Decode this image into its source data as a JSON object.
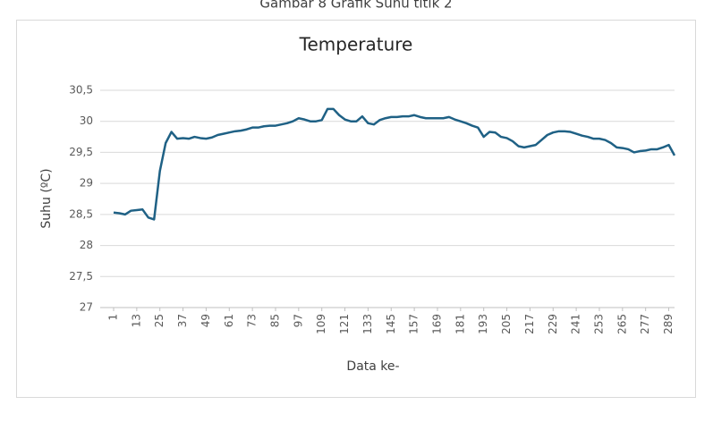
{
  "chart_data": {
    "type": "line",
    "caption": "Gambar 8 Grafik Suhu titik 2",
    "title": "Temperature",
    "y_label": "Suhu (ºC)",
    "x_label": "Data ke-",
    "x": [
      1,
      4,
      7,
      10,
      13,
      16,
      19,
      22,
      25,
      28,
      31,
      34,
      37,
      40,
      43,
      46,
      49,
      52,
      55,
      58,
      61,
      64,
      67,
      70,
      73,
      76,
      79,
      82,
      85,
      88,
      91,
      94,
      97,
      100,
      103,
      106,
      109,
      112,
      115,
      118,
      121,
      124,
      127,
      130,
      133,
      136,
      139,
      142,
      145,
      148,
      151,
      154,
      157,
      160,
      163,
      166,
      169,
      172,
      175,
      178,
      181,
      184,
      187,
      190,
      193,
      196,
      199,
      202,
      205,
      208,
      211,
      214,
      217,
      220,
      223,
      226,
      229,
      232,
      235,
      238,
      241,
      244,
      247,
      250,
      253,
      256,
      259,
      262,
      265,
      268,
      271,
      274,
      277,
      280,
      283,
      286,
      289,
      292
    ],
    "series": [
      {
        "name": "Temperature",
        "color": "#1f6185",
        "values": [
          28.53,
          28.52,
          28.5,
          28.56,
          28.57,
          28.58,
          28.45,
          28.42,
          29.2,
          29.65,
          29.83,
          29.72,
          29.73,
          29.72,
          29.75,
          29.73,
          29.72,
          29.74,
          29.78,
          29.8,
          29.82,
          29.84,
          29.85,
          29.87,
          29.9,
          29.9,
          29.92,
          29.93,
          29.93,
          29.95,
          29.97,
          30.0,
          30.05,
          30.03,
          30.0,
          30.0,
          30.02,
          30.2,
          30.2,
          30.1,
          30.03,
          30.0,
          30.0,
          30.08,
          29.97,
          29.95,
          30.02,
          30.05,
          30.07,
          30.07,
          30.08,
          30.08,
          30.1,
          30.07,
          30.05,
          30.05,
          30.05,
          30.05,
          30.07,
          30.03,
          30.0,
          29.97,
          29.93,
          29.9,
          29.75,
          29.83,
          29.82,
          29.75,
          29.73,
          29.68,
          29.6,
          29.58,
          29.6,
          29.62,
          29.7,
          29.78,
          29.82,
          29.84,
          29.84,
          29.83,
          29.8,
          29.77,
          29.75,
          29.72,
          29.72,
          29.7,
          29.65,
          29.58,
          29.57,
          29.55,
          29.5,
          29.52,
          29.53,
          29.55,
          29.55,
          29.58,
          29.62,
          29.45
        ]
      }
    ],
    "xlim": [
      1,
      292
    ],
    "xticks": [
      1,
      13,
      25,
      37,
      49,
      61,
      73,
      85,
      97,
      109,
      121,
      133,
      145,
      157,
      169,
      181,
      193,
      205,
      217,
      229,
      241,
      253,
      265,
      277,
      289
    ],
    "ylim": [
      27,
      30.5
    ],
    "yticks": [
      27,
      {
        "value": 27.5,
        "label": "27,5"
      },
      28,
      {
        "value": 28.5,
        "label": "28,5"
      },
      29,
      {
        "value": 29.5,
        "label": "29,5"
      },
      30,
      {
        "value": 30.5,
        "label": "30,5"
      }
    ],
    "grid": true
  }
}
